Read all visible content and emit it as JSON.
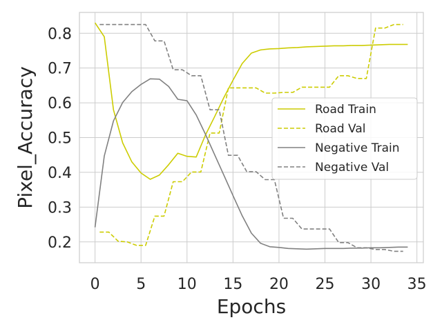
{
  "chart_data": {
    "type": "line",
    "title": "",
    "xlabel": "Epochs",
    "ylabel": "Pixel_Accuracy",
    "xlim": [
      -1.7,
      35.7
    ],
    "ylim": [
      0.14,
      0.86
    ],
    "xticks": [
      0,
      5,
      10,
      15,
      20,
      25,
      30,
      35
    ],
    "yticks": [
      0.2,
      0.3,
      0.4,
      0.5,
      0.6,
      0.7,
      0.8
    ],
    "grid": true,
    "legend": "center-right",
    "series": [
      {
        "name": "Road Train",
        "color": "#cccc00",
        "style": "solid",
        "x": [
          0,
          1,
          2,
          3,
          4,
          5,
          6,
          7,
          8,
          9,
          10,
          11,
          12,
          13,
          14,
          15,
          16,
          17,
          18,
          19,
          20,
          21,
          22,
          23,
          24,
          25,
          26,
          27,
          28,
          29,
          30,
          31,
          32,
          33,
          34
        ],
        "y": [
          0.83,
          0.79,
          0.58,
          0.485,
          0.43,
          0.398,
          0.38,
          0.392,
          0.422,
          0.455,
          0.446,
          0.444,
          0.507,
          0.56,
          0.615,
          0.665,
          0.713,
          0.743,
          0.752,
          0.755,
          0.756,
          0.758,
          0.759,
          0.761,
          0.762,
          0.763,
          0.764,
          0.764,
          0.765,
          0.765,
          0.766,
          0.767,
          0.768,
          0.768,
          0.768
        ]
      },
      {
        "name": "Road Val",
        "color": "#cccc00",
        "style": "dashed",
        "x": [
          1,
          2,
          3,
          4,
          5,
          6,
          7,
          8,
          9,
          10,
          11,
          12,
          13,
          14,
          15,
          16,
          17,
          18,
          19,
          20,
          21,
          22,
          23,
          24,
          25,
          26,
          27,
          28,
          29,
          30,
          31,
          32,
          33,
          34
        ],
        "y": [
          0.228,
          0.228,
          0.202,
          0.2,
          0.19,
          0.19,
          0.274,
          0.274,
          0.373,
          0.373,
          0.401,
          0.401,
          0.513,
          0.513,
          0.643,
          0.643,
          0.643,
          0.643,
          0.628,
          0.628,
          0.63,
          0.63,
          0.645,
          0.645,
          0.645,
          0.645,
          0.678,
          0.678,
          0.67,
          0.67,
          0.815,
          0.815,
          0.825,
          0.825
        ]
      },
      {
        "name": "Negative Train",
        "color": "#808080",
        "style": "solid",
        "x": [
          0,
          1,
          2,
          3,
          4,
          5,
          6,
          7,
          8,
          9,
          10,
          11,
          12,
          13,
          14,
          15,
          16,
          17,
          18,
          19,
          20,
          21,
          22,
          23,
          24,
          25,
          26,
          27,
          28,
          29,
          30,
          31,
          32,
          33,
          34
        ],
        "y": [
          0.242,
          0.447,
          0.548,
          0.601,
          0.632,
          0.653,
          0.669,
          0.668,
          0.647,
          0.61,
          0.606,
          0.565,
          0.51,
          0.451,
          0.392,
          0.333,
          0.275,
          0.225,
          0.196,
          0.186,
          0.184,
          0.181,
          0.18,
          0.179,
          0.18,
          0.181,
          0.181,
          0.181,
          0.182,
          0.182,
          0.183,
          0.183,
          0.184,
          0.185,
          0.185
        ]
      },
      {
        "name": "Negative Val",
        "color": "#808080",
        "style": "dashed",
        "x": [
          1,
          2,
          3,
          4,
          5,
          6,
          7,
          8,
          9,
          10,
          11,
          12,
          13,
          14,
          15,
          16,
          17,
          18,
          19,
          20,
          21,
          22,
          23,
          24,
          25,
          26,
          27,
          28,
          29,
          30,
          31,
          32,
          33,
          34
        ],
        "y": [
          0.825,
          0.825,
          0.825,
          0.825,
          0.825,
          0.825,
          0.778,
          0.778,
          0.695,
          0.695,
          0.678,
          0.678,
          0.58,
          0.58,
          0.449,
          0.449,
          0.402,
          0.402,
          0.379,
          0.379,
          0.268,
          0.268,
          0.237,
          0.237,
          0.237,
          0.237,
          0.198,
          0.198,
          0.183,
          0.183,
          0.178,
          0.178,
          0.173,
          0.173
        ]
      }
    ]
  }
}
